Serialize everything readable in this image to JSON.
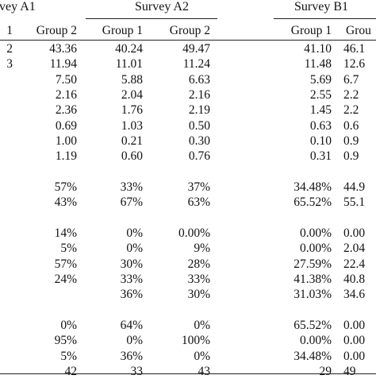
{
  "surveys": {
    "a1": "vey A1",
    "a2": "Survey A2",
    "b1": "Survey B1"
  },
  "groups": {
    "c0": "1",
    "c1": "Group 2",
    "c2": "Group 1",
    "c3": "Group 2",
    "c4": "Group 1",
    "c5": "Grou"
  },
  "rows": [
    [
      "2",
      "43.36",
      "40.24",
      "49.47",
      "41.10",
      "46.1"
    ],
    [
      "3",
      "11.94",
      "11.01",
      "11.24",
      "11.48",
      "12.6"
    ],
    [
      "",
      "7.50",
      "5.88",
      "6.63",
      "5.69",
      "6.7"
    ],
    [
      "",
      "2.16",
      "2.04",
      "2.16",
      "2.55",
      "2.2"
    ],
    [
      "",
      "2.36",
      "1.76",
      "2.19",
      "1.45",
      "2.2"
    ],
    [
      "",
      "0.69",
      "1.03",
      "0.50",
      "0.63",
      "0.6"
    ],
    [
      "",
      "1.00",
      "0.21",
      "0.30",
      "0.10",
      "0.9"
    ],
    [
      "",
      "1.19",
      "0.60",
      "0.76",
      "0.31",
      "0.9"
    ],
    [
      "",
      "57%",
      "33%",
      "37%",
      "34.48%",
      "44.9"
    ],
    [
      "",
      "43%",
      "67%",
      "63%",
      "65.52%",
      "55.1"
    ],
    [
      "",
      "14%",
      "0%",
      "0.00%",
      "0.00%",
      "0.00"
    ],
    [
      "",
      "5%",
      "0%",
      "9%",
      "0.00%",
      "2.04"
    ],
    [
      "",
      "57%",
      "30%",
      "28%",
      "27.59%",
      "22.4"
    ],
    [
      "",
      "24%",
      "33%",
      "33%",
      "41.38%",
      "40.8"
    ],
    [
      "",
      "",
      "36%",
      "30%",
      "31.03%",
      "34.6"
    ],
    [
      "",
      "0%",
      "64%",
      "0%",
      "65.52%",
      "0.00"
    ],
    [
      "",
      "95%",
      "0%",
      "100%",
      "0.00%",
      "0.00"
    ],
    [
      "",
      "5%",
      "36%",
      "0%",
      "34.48%",
      "0.00"
    ],
    [
      "",
      "42",
      "33",
      "43",
      "29",
      "49"
    ]
  ]
}
